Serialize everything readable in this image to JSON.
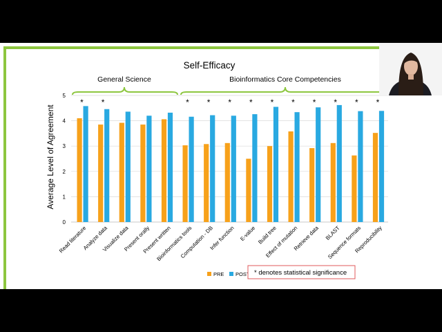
{
  "slide": {
    "title": "Self-Efficacy",
    "group_labels": [
      "General Science",
      "Bioinformatics Core Competencies"
    ],
    "significance_note": "* denotes statistical significance",
    "significance_symbol": "*"
  },
  "colors": {
    "pre": "#f7a11a",
    "post": "#29a9e1",
    "brace": "#8dc63f",
    "frame_border": "#8dc63f",
    "note_border": "#e0585b"
  },
  "chart_data": {
    "type": "bar",
    "title": "Self-Efficacy",
    "ylabel": "Average Level of Agreement",
    "xlabel": "",
    "ylim": [
      0,
      5
    ],
    "yticks": [
      "0",
      "1",
      "2",
      "3",
      "4",
      "5"
    ],
    "grid": true,
    "legend_position": "bottom",
    "categories": [
      "Read literature",
      "Analyze data",
      "Visualize data",
      "Present orally",
      "Present written",
      "Bioinformatics tools",
      "Computation - DB",
      "Infer function",
      "E-value",
      "Build tree",
      "Effect of mutation",
      "Retrieve data",
      "BLAST",
      "Sequence formats",
      "Reproducibility"
    ],
    "series": [
      {
        "name": "PRE",
        "values": [
          4.1,
          3.85,
          3.92,
          3.85,
          4.06,
          3.03,
          3.08,
          3.12,
          2.5,
          3.0,
          3.58,
          2.92,
          3.12,
          2.63,
          3.52
        ]
      },
      {
        "name": "POST",
        "values": [
          4.58,
          4.46,
          4.36,
          4.2,
          4.32,
          4.16,
          4.22,
          4.2,
          4.26,
          4.55,
          4.34,
          4.53,
          4.62,
          4.38,
          4.39
        ]
      }
    ],
    "significant": [
      true,
      true,
      false,
      false,
      false,
      true,
      true,
      true,
      true,
      true,
      true,
      true,
      true,
      true,
      true
    ]
  }
}
